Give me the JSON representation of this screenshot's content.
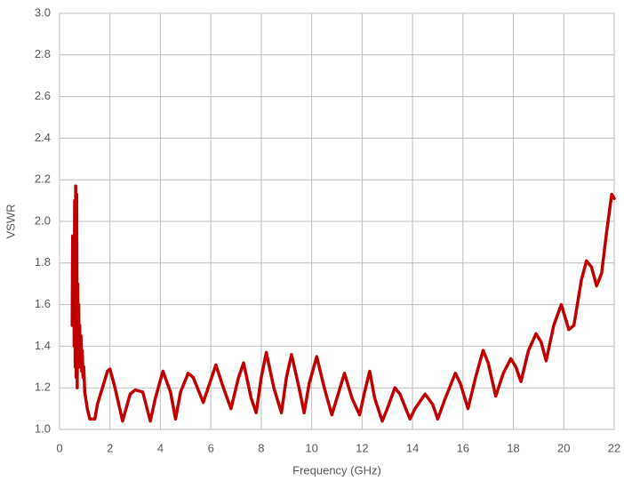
{
  "chart_data": {
    "type": "line",
    "xlabel": "Frequency (GHz)",
    "ylabel": "VSWR",
    "color": "#c00000",
    "grid": true,
    "xlim": [
      0,
      22
    ],
    "xticks": [
      0,
      2,
      4,
      6,
      8,
      10,
      12,
      14,
      16,
      18,
      20,
      22
    ],
    "ylim": [
      1.0,
      3.0
    ],
    "yticks": [
      {
        "value": 1.0,
        "label": "1.0"
      },
      1.2,
      1.4,
      1.6,
      1.8,
      {
        "value": 2.0,
        "label": "2.0"
      },
      2.2,
      2.4,
      2.6,
      2.8,
      {
        "value": 3.0,
        "label": "3.0"
      }
    ],
    "x": [
      0.5,
      0.52,
      0.54,
      0.56,
      0.58,
      0.6,
      0.62,
      0.64,
      0.66,
      0.68,
      0.7,
      0.72,
      0.74,
      0.76,
      0.78,
      0.8,
      0.82,
      0.85,
      0.88,
      0.9,
      0.93,
      0.96,
      1.0,
      1.1,
      1.2,
      1.4,
      1.5,
      1.7,
      1.9,
      2.0,
      2.2,
      2.5,
      2.8,
      3.0,
      3.3,
      3.6,
      3.8,
      4.1,
      4.4,
      4.6,
      4.8,
      5.1,
      5.3,
      5.7,
      6.2,
      6.5,
      6.8,
      7.1,
      7.3,
      7.6,
      7.8,
      8.0,
      8.2,
      8.5,
      8.8,
      9.0,
      9.2,
      9.5,
      9.7,
      9.9,
      10.2,
      10.5,
      10.8,
      11.0,
      11.3,
      11.6,
      11.9,
      12.1,
      12.3,
      12.5,
      12.8,
      13.0,
      13.3,
      13.5,
      13.9,
      14.1,
      14.5,
      14.8,
      15.0,
      15.3,
      15.7,
      15.9,
      16.2,
      16.5,
      16.8,
      17.0,
      17.3,
      17.6,
      17.9,
      18.1,
      18.3,
      18.6,
      18.9,
      19.1,
      19.3,
      19.6,
      19.9,
      20.2,
      20.4,
      20.7,
      20.9,
      21.1,
      21.3,
      21.5,
      21.7,
      21.9,
      22.0
    ],
    "values": [
      1.5,
      1.93,
      1.55,
      1.85,
      1.4,
      2.1,
      1.3,
      2.17,
      1.25,
      2.13,
      1.2,
      1.7,
      1.3,
      1.6,
      1.35,
      1.5,
      1.3,
      1.45,
      1.28,
      1.38,
      1.25,
      1.3,
      1.18,
      1.1,
      1.05,
      1.05,
      1.12,
      1.2,
      1.28,
      1.29,
      1.2,
      1.04,
      1.17,
      1.19,
      1.18,
      1.04,
      1.15,
      1.28,
      1.18,
      1.05,
      1.18,
      1.27,
      1.25,
      1.13,
      1.31,
      1.2,
      1.1,
      1.25,
      1.32,
      1.15,
      1.08,
      1.25,
      1.37,
      1.2,
      1.08,
      1.25,
      1.36,
      1.2,
      1.08,
      1.22,
      1.35,
      1.2,
      1.07,
      1.15,
      1.27,
      1.15,
      1.07,
      1.18,
      1.28,
      1.15,
      1.04,
      1.1,
      1.2,
      1.17,
      1.05,
      1.1,
      1.17,
      1.12,
      1.05,
      1.15,
      1.27,
      1.22,
      1.1,
      1.25,
      1.38,
      1.32,
      1.16,
      1.27,
      1.34,
      1.3,
      1.23,
      1.38,
      1.46,
      1.42,
      1.33,
      1.5,
      1.6,
      1.48,
      1.5,
      1.72,
      1.81,
      1.78,
      1.69,
      1.75,
      1.95,
      2.13,
      2.11
    ]
  }
}
